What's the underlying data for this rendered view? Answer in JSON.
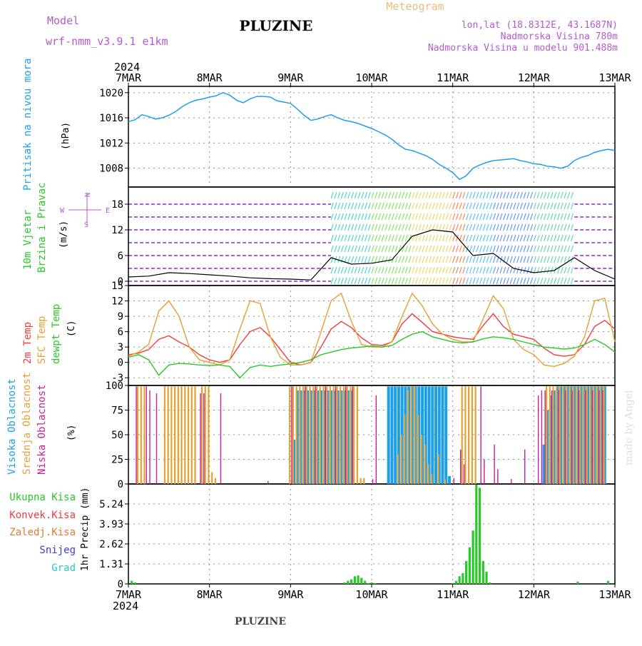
{
  "header": {
    "model_label": "Model",
    "model_value": "wrf-nmm_v3.9.1  e1km",
    "meteogram_label": "Meteogram",
    "station": "PLUZINE",
    "coords": "lon,lat (18.8312E, 43.1687N)",
    "elevation": "Nadmorska Visina 780m",
    "model_elevation": "Nadmorska Visina u modelu 901.488m",
    "year_top": "2024",
    "year_bottom": "2024",
    "footer_station": "PLUZINE",
    "signature": "made by Angel"
  },
  "time_axis": {
    "labels": [
      "7MAR",
      "8MAR",
      "9MAR",
      "10MAR",
      "11MAR",
      "12MAR",
      "13MAR"
    ],
    "range_hours": [
      0,
      144
    ]
  },
  "panel_labels": {
    "pressure": [
      "Pritisak na nivou mora"
    ],
    "pressure_unit": "(hPa)",
    "wind": [
      "10m Vjetar",
      "Brzina i Pravac"
    ],
    "wind_unit": "(m/s)",
    "wind_compass": [
      "N",
      "W",
      "E",
      "S"
    ],
    "temp": [
      "2m Temp",
      "SFC Temp",
      "dewpt Temp"
    ],
    "temp_unit": "(C)",
    "cloud": [
      "Visoka Oblacnost",
      "Srednja Oblacnost",
      "Niska Oblacnost"
    ],
    "cloud_unit": "(%)",
    "precip_legend": [
      "Ukupna Kisa",
      "Konvek.Kisa",
      "Zaledj.Kisa",
      "Snijeg",
      "Grad"
    ],
    "precip_unit": "1hr Precip (mm)"
  },
  "colors": {
    "pressure": "#1ea0e6",
    "temp2m": "#f03c3c",
    "tsfc": "#e6a032",
    "dewpt": "#28c828",
    "cloud_high": "#1ea0e6",
    "cloud_mid": "#e6a032",
    "cloud_low": "#c81e96",
    "precip_total": "#28c828",
    "label_purple": "#b45ad2",
    "label_orange": "#e6be82",
    "grid": "#909090"
  },
  "chart_data": [
    {
      "type": "line",
      "name": "pressure",
      "ylim": [
        1005,
        1021
      ],
      "yticks": [
        1008,
        1012,
        1016,
        1020
      ],
      "x": [
        0,
        2,
        4,
        6,
        8,
        10,
        12,
        14,
        16,
        18,
        20,
        22,
        24,
        26,
        28,
        30,
        32,
        34,
        36,
        38,
        40,
        42,
        44,
        46,
        48,
        50,
        52,
        54,
        56,
        58,
        60,
        62,
        64,
        66,
        68,
        70,
        72,
        74,
        76,
        78,
        80,
        82,
        84,
        86,
        88,
        90,
        92,
        94,
        96,
        98,
        100,
        102,
        104,
        106,
        108,
        110,
        112,
        114,
        116,
        118,
        120,
        122,
        124,
        126,
        128,
        130,
        132,
        134,
        136,
        138,
        140,
        142,
        144
      ],
      "y": [
        1015.4,
        1015.7,
        1016.5,
        1016.2,
        1015.8,
        1016.0,
        1016.4,
        1017.0,
        1017.8,
        1018.4,
        1018.8,
        1019.0,
        1019.3,
        1019.5,
        1020.0,
        1019.6,
        1018.8,
        1018.4,
        1019.0,
        1019.4,
        1019.4,
        1019.3,
        1018.7,
        1018.5,
        1018.3,
        1017.4,
        1016.4,
        1015.6,
        1015.8,
        1016.2,
        1016.5,
        1016.0,
        1015.6,
        1015.4,
        1015.1,
        1014.7,
        1014.3,
        1013.8,
        1013.3,
        1012.6,
        1011.7,
        1011.0,
        1010.8,
        1010.4,
        1010.0,
        1009.4,
        1008.6,
        1008.0,
        1007.3,
        1006.2,
        1006.8,
        1008.0,
        1008.5,
        1008.9,
        1009.2,
        1009.3,
        1009.4,
        1009.5,
        1009.2,
        1009.0,
        1008.7,
        1008.6,
        1008.3,
        1008.2,
        1008.0,
        1008.3,
        1009.2,
        1009.7,
        1010.0,
        1010.5,
        1010.8,
        1011.0,
        1010.8
      ]
    },
    {
      "type": "line",
      "name": "wind",
      "ylim": [
        -1,
        22
      ],
      "yticks": [
        0,
        6,
        12,
        18
      ],
      "x": [
        0,
        6,
        12,
        18,
        24,
        30,
        36,
        42,
        48,
        54,
        60,
        66,
        72,
        78,
        84,
        90,
        96,
        102,
        108,
        114,
        120,
        126,
        132,
        138,
        144
      ],
      "y": [
        1.0,
        1.2,
        2.0,
        1.8,
        1.5,
        1.2,
        0.8,
        0.6,
        0.5,
        0.3,
        5.5,
        4.0,
        4.2,
        5.0,
        10.5,
        12.0,
        11.5,
        6.0,
        6.5,
        3.0,
        2.0,
        2.5,
        5.5,
        2.5,
        0.5
      ]
    },
    {
      "type": "line",
      "ylim": [
        -4.5,
        15
      ],
      "yticks": [
        -3,
        0,
        3,
        6,
        9,
        12,
        15
      ],
      "x": [
        0,
        3,
        6,
        9,
        12,
        15,
        18,
        21,
        24,
        27,
        30,
        33,
        36,
        39,
        42,
        45,
        48,
        51,
        54,
        57,
        60,
        63,
        66,
        69,
        72,
        75,
        78,
        81,
        84,
        87,
        90,
        93,
        96,
        99,
        102,
        105,
        108,
        111,
        114,
        117,
        120,
        123,
        126,
        129,
        132,
        135,
        138,
        141,
        144
      ],
      "series": [
        {
          "name": "2m Temp",
          "values": [
            1.5,
            1.8,
            2.5,
            4.5,
            5.2,
            4.0,
            3.0,
            1.5,
            0.5,
            0.0,
            0.5,
            3.5,
            6.0,
            6.8,
            5.0,
            2.5,
            0.0,
            -0.5,
            0.0,
            3.0,
            6.5,
            8.0,
            6.8,
            4.8,
            3.5,
            3.3,
            4.0,
            7.5,
            9.5,
            7.8,
            6.0,
            5.5,
            5.0,
            4.7,
            4.5,
            7.2,
            9.5,
            7.0,
            5.5,
            5.0,
            4.5,
            2.8,
            1.5,
            1.2,
            1.5,
            3.5,
            7.0,
            8.2,
            6.5
          ]
        },
        {
          "name": "SFC Temp",
          "values": [
            1.2,
            2.0,
            3.5,
            10.0,
            12.0,
            9.0,
            3.0,
            0.5,
            0.0,
            -0.5,
            0.5,
            6.5,
            12.0,
            11.5,
            5.0,
            1.0,
            -0.5,
            -0.5,
            0.0,
            6.0,
            12.0,
            13.5,
            8.0,
            3.5,
            3.0,
            3.0,
            4.0,
            9.0,
            13.5,
            11.0,
            7.5,
            5.5,
            4.5,
            4.0,
            4.0,
            8.5,
            13.0,
            10.5,
            4.5,
            2.5,
            1.5,
            -0.5,
            -0.8,
            -0.2,
            1.2,
            5.0,
            12.0,
            12.5,
            4.0
          ]
        },
        {
          "name": "dewpt Temp",
          "values": [
            1.0,
            1.5,
            0.5,
            -2.5,
            -0.5,
            -0.2,
            -0.3,
            -0.5,
            -0.6,
            -0.5,
            -0.8,
            -3.0,
            -1.0,
            -0.5,
            -0.8,
            -0.5,
            -0.3,
            0.0,
            0.5,
            1.5,
            2.0,
            2.5,
            2.8,
            3.0,
            3.2,
            3.0,
            3.3,
            4.5,
            5.5,
            6.0,
            5.0,
            4.5,
            4.0,
            3.8,
            4.0,
            4.6,
            5.0,
            4.8,
            4.5,
            4.0,
            3.5,
            3.0,
            2.8,
            2.6,
            2.8,
            3.5,
            4.5,
            3.5,
            2.0
          ]
        }
      ]
    },
    {
      "type": "bar",
      "ylim": [
        0,
        100
      ],
      "yticks": [
        0,
        25,
        50,
        75,
        100
      ],
      "series": [
        {
          "name": "Visoka Oblacnost",
          "x": [
            49,
            50,
            51,
            52,
            53,
            54,
            55,
            56,
            57,
            58,
            59,
            60,
            61,
            62,
            63,
            64,
            65,
            66,
            77,
            78,
            79,
            80,
            81,
            82,
            83,
            84,
            85,
            86,
            87,
            88,
            89,
            90,
            91,
            92,
            93,
            94,
            95,
            123,
            124,
            125,
            126,
            127,
            128,
            129,
            130,
            131,
            132,
            133,
            134,
            135,
            136,
            137,
            138,
            139,
            140,
            141
          ],
          "values": [
            45,
            95,
            95,
            95,
            95,
            95,
            95,
            95,
            95,
            95,
            95,
            95,
            95,
            95,
            95,
            95,
            95,
            95,
            99,
            99,
            99,
            99,
            99,
            99,
            99,
            99,
            99,
            99,
            99,
            99,
            99,
            99,
            99,
            99,
            99,
            99,
            8,
            40,
            75,
            90,
            95,
            99,
            99,
            99,
            99,
            99,
            99,
            99,
            99,
            99,
            99,
            99,
            99,
            99,
            99,
            99
          ]
        },
        {
          "name": "Srednja Oblacnost",
          "x": [
            3,
            4,
            5,
            11,
            12,
            13,
            14,
            15,
            16,
            17,
            18,
            19,
            20,
            22,
            23,
            24,
            25,
            26,
            48,
            49,
            50,
            51,
            52,
            53,
            54,
            55,
            56,
            57,
            58,
            59,
            60,
            61,
            62,
            63,
            64,
            65,
            66,
            67,
            68,
            69,
            70,
            80,
            81,
            82,
            83,
            84,
            85,
            86,
            87,
            88,
            89,
            90,
            92,
            94,
            99,
            100,
            101,
            102,
            103,
            124,
            125,
            126,
            127,
            128,
            129,
            130,
            131,
            132,
            133,
            134,
            135,
            136,
            137,
            138,
            139,
            140,
            141
          ],
          "values": [
            99,
            99,
            99,
            99,
            99,
            99,
            99,
            99,
            99,
            99,
            99,
            99,
            99,
            99,
            99,
            99,
            12,
            6,
            99,
            99,
            99,
            99,
            99,
            99,
            99,
            99,
            99,
            99,
            99,
            99,
            99,
            99,
            99,
            99,
            99,
            99,
            99,
            99,
            99,
            6,
            6,
            30,
            50,
            70,
            95,
            99,
            99,
            70,
            50,
            40,
            20,
            10,
            30,
            5,
            99,
            99,
            99,
            99,
            99,
            99,
            99,
            99,
            99,
            99,
            99,
            99,
            99,
            99,
            99,
            99,
            99,
            99,
            99,
            99,
            99,
            99,
            99
          ]
        },
        {
          "name": "Niska Oblacnost",
          "x": [
            2,
            5,
            6,
            8,
            21,
            22,
            27,
            41,
            48,
            52,
            55,
            58,
            61,
            64,
            66,
            72,
            73,
            96,
            98,
            99,
            104,
            105,
            108,
            109,
            113,
            117,
            121,
            122,
            123,
            125,
            127,
            129,
            131,
            133,
            135,
            137,
            139,
            140
          ],
          "values": [
            99,
            99,
            95,
            92,
            92,
            92,
            92,
            3,
            99,
            99,
            99,
            99,
            99,
            99,
            99,
            5,
            90,
            6,
            35,
            20,
            99,
            25,
            40,
            15,
            5,
            35,
            90,
            95,
            95,
            95,
            95,
            95,
            95,
            95,
            95,
            95,
            95,
            95
          ]
        }
      ]
    },
    {
      "type": "bar",
      "ylim": [
        0,
        6.55
      ],
      "yticks": [
        0,
        1.31,
        2.62,
        3.93,
        5.24
      ],
      "series": [
        {
          "name": "Ukupna Kisa",
          "x": [
            1,
            2,
            64,
            65,
            66,
            67,
            68,
            69,
            70,
            71,
            72,
            73,
            96,
            97,
            98,
            99,
            100,
            101,
            102,
            103,
            104,
            105,
            106,
            107,
            133,
            142
          ],
          "values": [
            0.2,
            0.1,
            0.1,
            0.2,
            0.3,
            0.5,
            0.55,
            0.4,
            0.2,
            0.05,
            0.1,
            0.05,
            0.05,
            0.2,
            0.5,
            0.7,
            1.5,
            2.4,
            3.5,
            6.5,
            6.3,
            1.5,
            0.8,
            0.1,
            0.15,
            0.2
          ]
        }
      ]
    }
  ]
}
